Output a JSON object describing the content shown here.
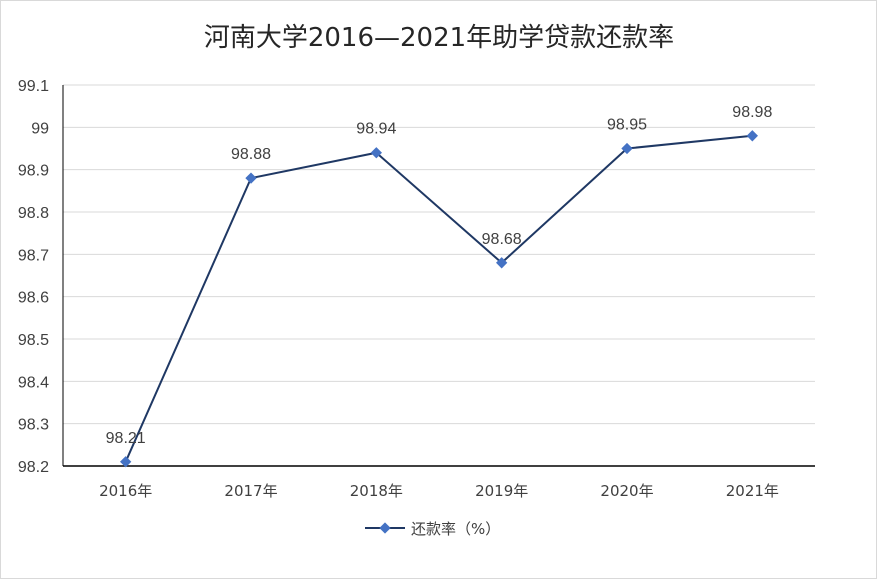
{
  "chart_data": {
    "type": "line",
    "title": "河南大学2016—2021年助学贷款还款率",
    "xlabel": "",
    "ylabel": "",
    "categories": [
      "2016年",
      "2017年",
      "2018年",
      "2019年",
      "2020年",
      "2021年"
    ],
    "series": [
      {
        "name": "还款率（%）",
        "values": [
          98.21,
          98.88,
          98.94,
          98.68,
          98.95,
          98.98
        ],
        "labels": [
          "98.21",
          "98.88",
          "98.94",
          "98.68",
          "98.95",
          "98.98"
        ],
        "color": "#1f3864",
        "marker_color": "#4472c4",
        "marker": "diamond"
      }
    ],
    "ylim": [
      98.2,
      99.1
    ],
    "yticks": [
      "98.2",
      "98.3",
      "98.4",
      "98.5",
      "98.6",
      "98.7",
      "98.8",
      "98.9",
      "99",
      "99.1"
    ],
    "grid": true,
    "legend_position": "bottom"
  }
}
